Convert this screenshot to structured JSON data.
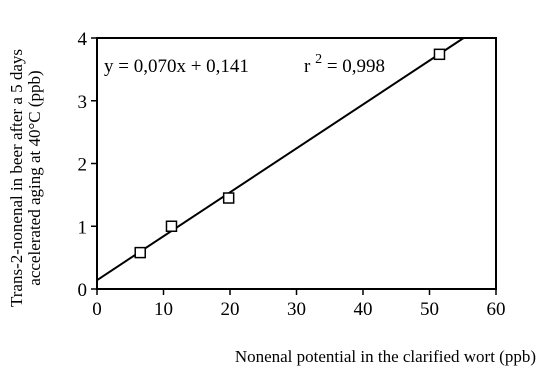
{
  "chart_data": {
    "type": "scatter",
    "xlabel": "Nonenal potential in the clarified wort (ppb)",
    "ylabel_lines": [
      "Trans-2-nonenal in beer after a 5 days",
      "accelerated aging at 40°C (ppb)"
    ],
    "xlim": [
      0,
      60
    ],
    "ylim": [
      0,
      4
    ],
    "x_ticks": [
      0,
      10,
      20,
      30,
      40,
      50,
      60
    ],
    "y_ticks": [
      0,
      1,
      2,
      3,
      4
    ],
    "x_tick_labels": [
      "0",
      "10",
      "20",
      "30",
      "40",
      "50",
      "60"
    ],
    "y_tick_labels": [
      "0",
      "1",
      "2",
      "3",
      "4"
    ],
    "grid": false,
    "points": [
      {
        "x": 6.5,
        "y": 0.58
      },
      {
        "x": 11.2,
        "y": 1.0
      },
      {
        "x": 19.8,
        "y": 1.45
      },
      {
        "x": 51.5,
        "y": 3.74
      }
    ],
    "fit": {
      "slope": 0.07,
      "intercept": 0.141
    },
    "annotation": {
      "equation": "y = 0,070x + 0,141",
      "r_label": "r",
      "r_exponent": "2",
      "r_value": " = 0,998"
    }
  }
}
